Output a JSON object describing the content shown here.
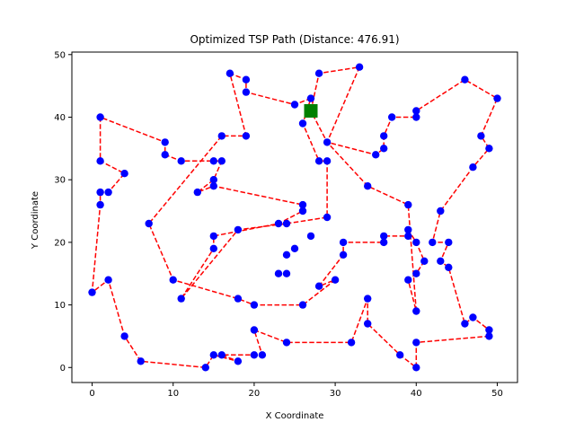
{
  "chart_data": {
    "type": "scatter",
    "title": "Optimized TSP Path (Distance: 476.91)",
    "xlabel": "X Coordinate",
    "ylabel": "Y Coordinate",
    "xlim": [
      -2.5,
      52.5
    ],
    "ylim": [
      -2.4,
      50.4
    ],
    "xticks": [
      0,
      10,
      20,
      30,
      40,
      50
    ],
    "yticks": [
      0,
      10,
      20,
      30,
      40,
      50
    ],
    "grid": false,
    "colors": {
      "path": "#ff0000",
      "point": "#0000ff",
      "start": "#008000"
    },
    "start": [
      27,
      41
    ],
    "path": [
      [
        27,
        41
      ],
      [
        28,
        47
      ],
      [
        33,
        48
      ],
      [
        29,
        36
      ],
      [
        35,
        34
      ],
      [
        36,
        35
      ],
      [
        36,
        37
      ],
      [
        37,
        40
      ],
      [
        40,
        40
      ],
      [
        40,
        41
      ],
      [
        46,
        46
      ],
      [
        50,
        43
      ],
      [
        48,
        37
      ],
      [
        49,
        35
      ],
      [
        47,
        32
      ],
      [
        43,
        25
      ],
      [
        42,
        20
      ],
      [
        44,
        20
      ],
      [
        43,
        17
      ],
      [
        44,
        16
      ],
      [
        46,
        7
      ],
      [
        47,
        8
      ],
      [
        49,
        6
      ],
      [
        49,
        5
      ],
      [
        40,
        4
      ],
      [
        40,
        0
      ],
      [
        38,
        2
      ],
      [
        34,
        7
      ],
      [
        34,
        11
      ],
      [
        32,
        4
      ],
      [
        24,
        4
      ],
      [
        20,
        6
      ],
      [
        21,
        2
      ],
      [
        20,
        2
      ],
      [
        16,
        2
      ],
      [
        18,
        1
      ],
      [
        15,
        2
      ],
      [
        14,
        0
      ],
      [
        6,
        1
      ],
      [
        4,
        5
      ],
      [
        2,
        14
      ],
      [
        0,
        12
      ],
      [
        1,
        26
      ],
      [
        1,
        28
      ],
      [
        2,
        28
      ],
      [
        4,
        31
      ],
      [
        1,
        33
      ],
      [
        1,
        40
      ],
      [
        9,
        36
      ],
      [
        9,
        34
      ],
      [
        11,
        33
      ],
      [
        15,
        33
      ],
      [
        16,
        33
      ],
      [
        15,
        30
      ],
      [
        13,
        28
      ],
      [
        15,
        29
      ],
      [
        26,
        26
      ],
      [
        26,
        25
      ],
      [
        23,
        23
      ],
      [
        15,
        21
      ],
      [
        15,
        19
      ],
      [
        11,
        11
      ],
      [
        18,
        22
      ],
      [
        24,
        23
      ],
      [
        29,
        24
      ],
      [
        29,
        33
      ],
      [
        28,
        33
      ],
      [
        26,
        39
      ],
      [
        27,
        43
      ],
      [
        25,
        42
      ],
      [
        19,
        44
      ],
      [
        19,
        46
      ],
      [
        17,
        47
      ],
      [
        19,
        37
      ],
      [
        16,
        37
      ],
      [
        7,
        23
      ],
      [
        10,
        14
      ],
      [
        18,
        11
      ],
      [
        20,
        10
      ],
      [
        26,
        10
      ],
      [
        30,
        14
      ],
      [
        28,
        13
      ],
      [
        31,
        18
      ],
      [
        31,
        20
      ],
      [
        36,
        20
      ],
      [
        36,
        21
      ],
      [
        39,
        21
      ],
      [
        39,
        22
      ],
      [
        40,
        20
      ],
      [
        41,
        17
      ],
      [
        40,
        15
      ],
      [
        39,
        14
      ],
      [
        40,
        9
      ],
      [
        39,
        26
      ],
      [
        34,
        29
      ],
      [
        29,
        36
      ],
      [
        27,
        41
      ]
    ],
    "extra_points": [
      [
        27,
        21
      ],
      [
        25,
        19
      ],
      [
        24,
        18
      ],
      [
        23,
        15
      ],
      [
        24,
        15
      ]
    ]
  }
}
